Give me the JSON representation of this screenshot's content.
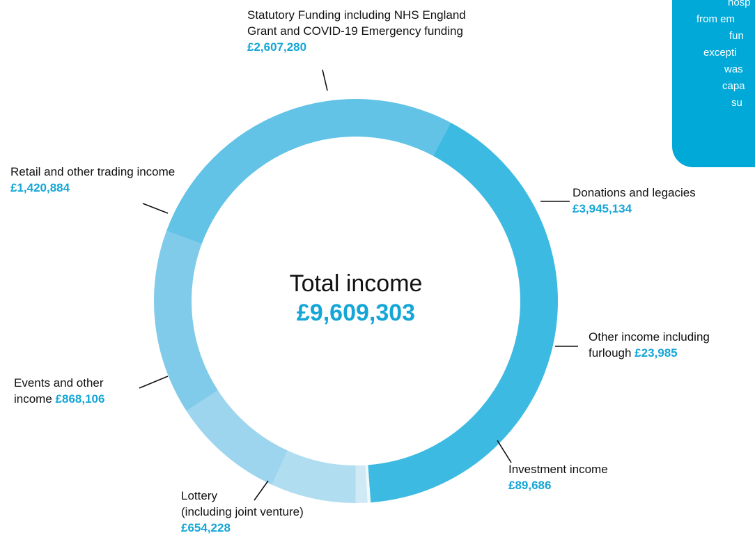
{
  "chart_data": {
    "type": "donut",
    "center_title": "Total income",
    "center_value_label": "£9,609,303",
    "categories": [
      "Donations and legacies",
      "Other income including furlough",
      "Investment income",
      "Lottery\n(including joint venture)",
      "Events and other income",
      "Retail and other trading income",
      "Statutory Funding including NHS England Grant and COVID-19 Emergency funding"
    ],
    "values": [
      3945134,
      23985,
      89686,
      654228,
      868106,
      1420884,
      2607280
    ],
    "value_labels": [
      "£3,945,134",
      "£23,985",
      "£89,686",
      "£654,228",
      "£868,106",
      "£1,420,884",
      "£2,607,280"
    ],
    "colors": [
      "#3dbae1",
      "#f1f8fc",
      "#cfe9f5",
      "#b1ddf1",
      "#9dd4ee",
      "#80cbea",
      "#62c3e6"
    ]
  },
  "callout": {
    "lines": [
      "hosp",
      "from em",
      "fun",
      "excepti",
      "was",
      "capa",
      "su"
    ]
  }
}
